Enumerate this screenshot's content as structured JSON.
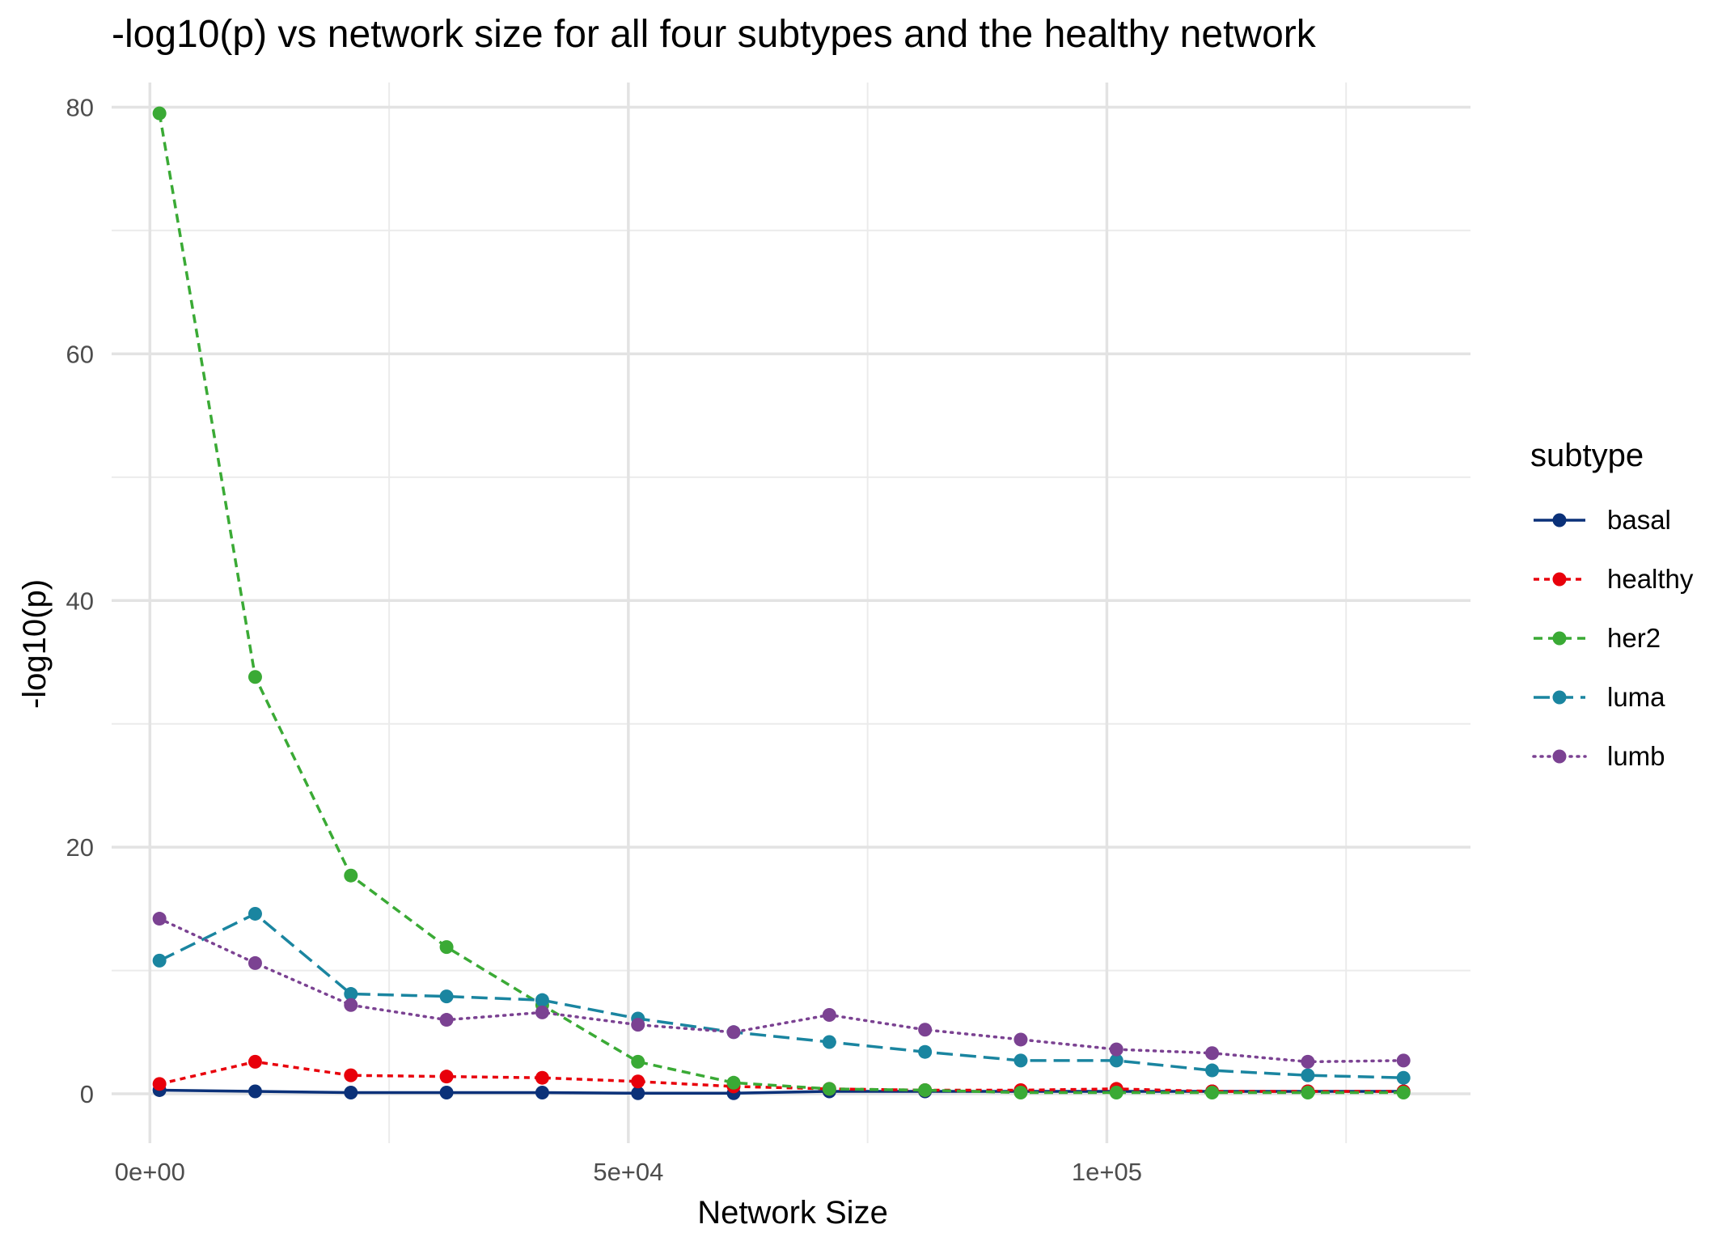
{
  "chart_data": {
    "type": "line",
    "title": "-log10(p) vs network size for all four subtypes and the healthy network",
    "xlabel": "Network Size",
    "ylabel": "-log10(p)",
    "xlim": [
      -4000,
      138000
    ],
    "ylim": [
      -4,
      82
    ],
    "x_ticks": [
      0,
      50000,
      100000
    ],
    "x_tick_labels": [
      "0e+00",
      "5e+04",
      "1e+05"
    ],
    "x_minor_ticks": [
      25000,
      75000,
      125000
    ],
    "y_ticks": [
      0,
      20,
      40,
      60,
      80
    ],
    "y_tick_labels": [
      "0",
      "20",
      "40",
      "60",
      "80"
    ],
    "y_minor_ticks": [
      10,
      30,
      50,
      70
    ],
    "grid": true,
    "legend": {
      "title": "subtype",
      "position": "right"
    },
    "x": [
      1000,
      11000,
      21000,
      31000,
      41000,
      51000,
      61000,
      71000,
      81000,
      91000,
      101000,
      111000,
      121000,
      131000
    ],
    "series": [
      {
        "name": "basal",
        "color": "#0b3179",
        "dash": "solid",
        "values": [
          0.3,
          0.2,
          0.1,
          0.1,
          0.1,
          0.05,
          0.05,
          0.2,
          0.2,
          0.2,
          0.2,
          0.2,
          0.2,
          0.2
        ]
      },
      {
        "name": "healthy",
        "color": "#e8000b",
        "dash": "shortdash",
        "values": [
          0.8,
          2.6,
          1.5,
          1.4,
          1.3,
          1.0,
          0.6,
          0.4,
          0.3,
          0.3,
          0.4,
          0.2,
          0.2,
          0.2
        ]
      },
      {
        "name": "her2",
        "color": "#3aaa35",
        "dash": "dash",
        "values": [
          79.5,
          33.8,
          17.7,
          11.9,
          7.2,
          2.6,
          0.9,
          0.4,
          0.3,
          0.1,
          0.1,
          0.1,
          0.1,
          0.1
        ]
      },
      {
        "name": "luma",
        "color": "#1a85a0",
        "dash": "longdash",
        "values": [
          10.8,
          14.6,
          8.1,
          7.9,
          7.6,
          6.1,
          5.0,
          4.2,
          3.4,
          2.7,
          2.7,
          1.9,
          1.5,
          1.3
        ]
      },
      {
        "name": "lumb",
        "color": "#7b4292",
        "dash": "dotted",
        "values": [
          14.2,
          10.6,
          7.2,
          6.0,
          6.6,
          5.6,
          5.0,
          6.4,
          5.2,
          4.4,
          3.6,
          3.3,
          2.6,
          2.7
        ]
      }
    ]
  }
}
